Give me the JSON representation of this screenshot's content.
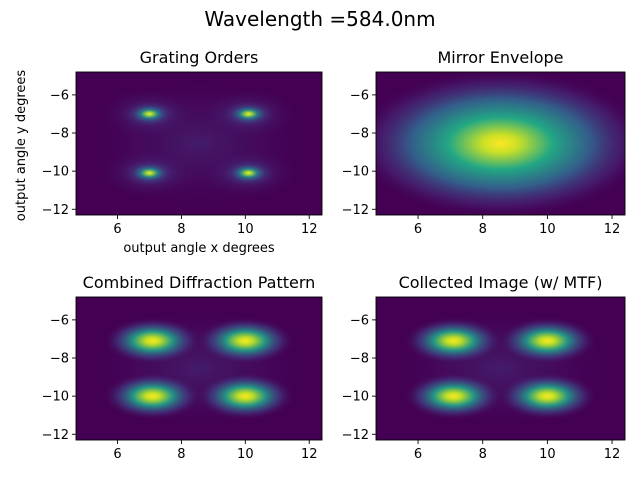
{
  "figure": {
    "suptitle": "Wavelength =584.0nm"
  },
  "chart_data": [
    {
      "type": "heatmap",
      "title": "Grating Orders",
      "xlabel": "output angle x degrees",
      "ylabel": "output angle y degrees",
      "xlim": [
        4.7,
        12.4
      ],
      "ylim": [
        -12.3,
        -4.8
      ],
      "xticks": [
        6,
        8,
        10,
        12
      ],
      "yticks": [
        -6,
        -8,
        -10,
        -12
      ],
      "colormap": "viridis",
      "blobs": [
        {
          "x": 7.0,
          "y": -7.0,
          "amp": 1.0
        },
        {
          "x": 10.1,
          "y": -7.0,
          "amp": 1.0
        },
        {
          "x": 7.0,
          "y": -10.1,
          "amp": 1.0
        },
        {
          "x": 10.1,
          "y": -10.1,
          "amp": 1.0
        }
      ],
      "pattern": "grating"
    },
    {
      "type": "heatmap",
      "title": "Mirror Envelope",
      "xlabel": "",
      "ylabel": "",
      "xlim": [
        4.7,
        12.4
      ],
      "ylim": [
        -12.3,
        -4.8
      ],
      "xticks": [
        6,
        8,
        10,
        12
      ],
      "yticks": [
        -6,
        -8,
        -10,
        -12
      ],
      "colormap": "viridis",
      "blobs": [
        {
          "x": 8.55,
          "y": -8.55,
          "amp": 1.0
        }
      ],
      "pattern": "envelope"
    },
    {
      "type": "heatmap",
      "title": "Combined Diffraction Pattern",
      "xlabel": "",
      "ylabel": "",
      "xlim": [
        4.7,
        12.4
      ],
      "ylim": [
        -12.3,
        -4.8
      ],
      "xticks": [
        6,
        8,
        10,
        12
      ],
      "yticks": [
        -6,
        -8,
        -10,
        -12
      ],
      "colormap": "viridis",
      "blobs": [
        {
          "x": 7.1,
          "y": -7.1,
          "amp": 1.0
        },
        {
          "x": 10.0,
          "y": -7.1,
          "amp": 1.0
        },
        {
          "x": 7.1,
          "y": -10.0,
          "amp": 1.0
        },
        {
          "x": 10.0,
          "y": -10.0,
          "amp": 1.0
        }
      ],
      "pattern": "combined"
    },
    {
      "type": "heatmap",
      "title": "Collected Image (w/ MTF)",
      "xlabel": "",
      "ylabel": "",
      "xlim": [
        4.7,
        12.4
      ],
      "ylim": [
        -12.3,
        -4.8
      ],
      "xticks": [
        6,
        8,
        10,
        12
      ],
      "yticks": [
        -6,
        -8,
        -10,
        -12
      ],
      "colormap": "viridis",
      "blobs": [
        {
          "x": 7.1,
          "y": -7.1,
          "amp": 1.0
        },
        {
          "x": 10.0,
          "y": -7.1,
          "amp": 1.0
        },
        {
          "x": 7.1,
          "y": -10.0,
          "amp": 1.0
        },
        {
          "x": 10.0,
          "y": -10.0,
          "amp": 1.0
        }
      ],
      "pattern": "combined"
    }
  ]
}
